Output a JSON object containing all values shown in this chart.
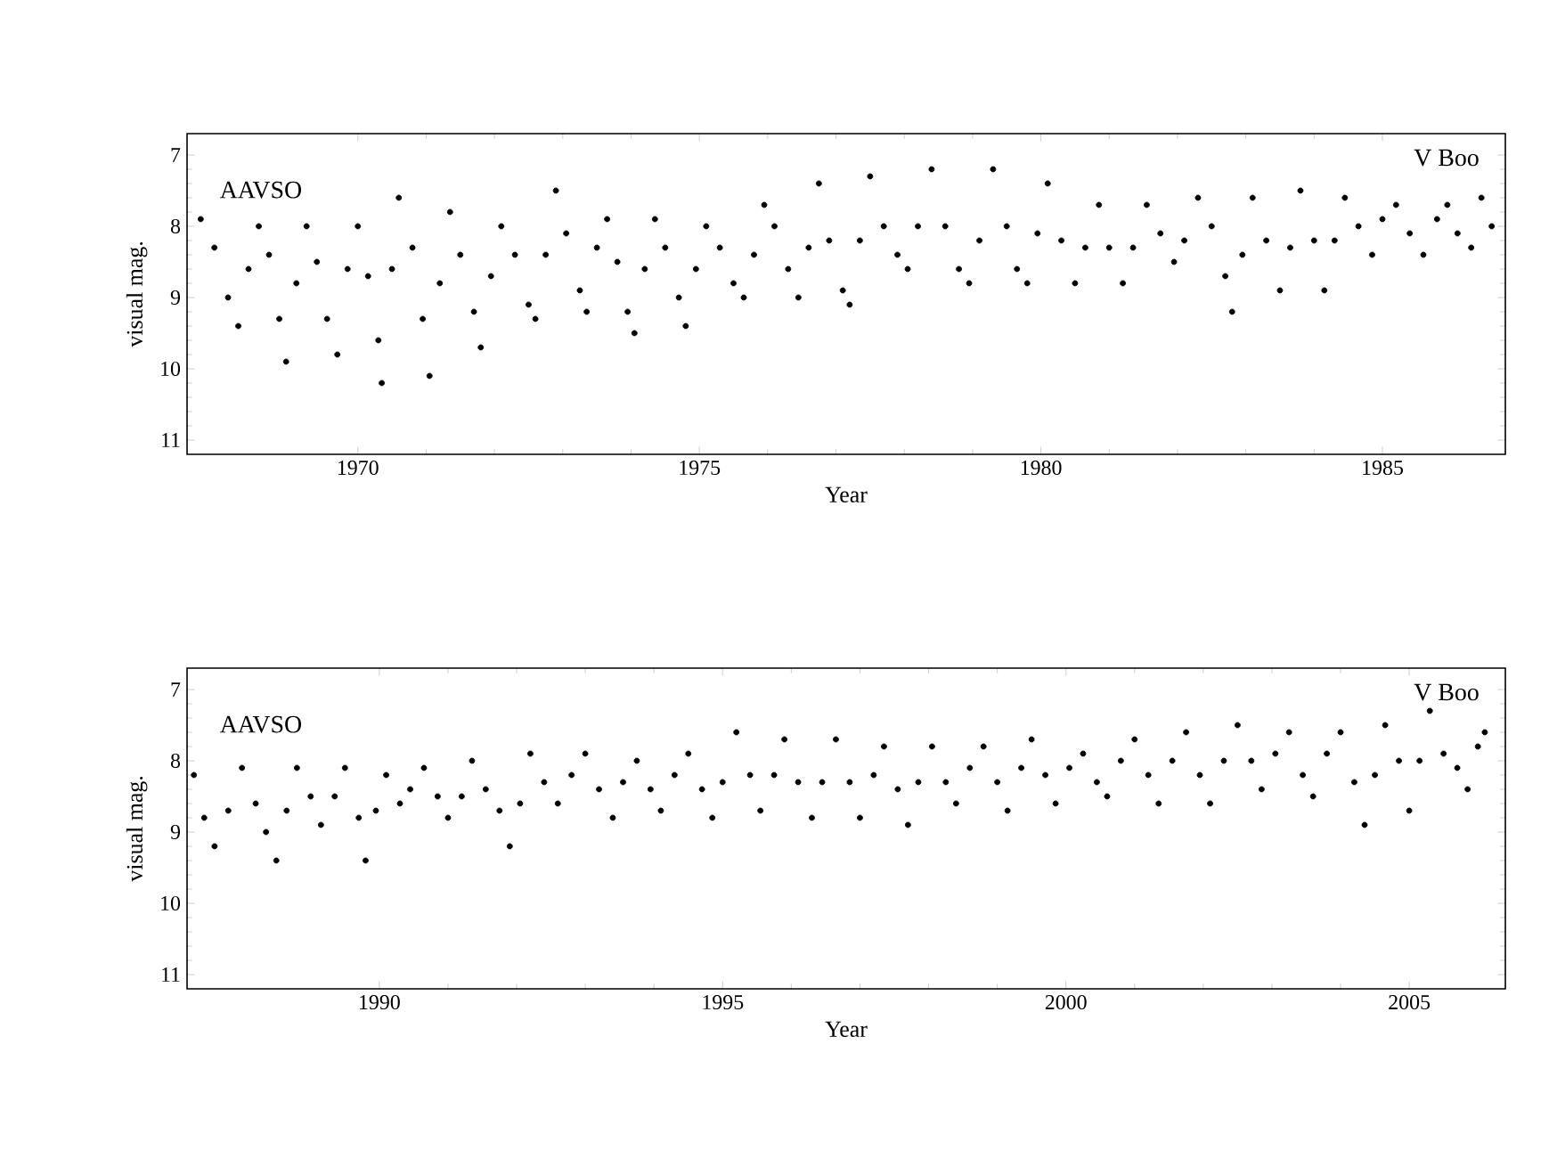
{
  "chart_data": [
    {
      "type": "scatter",
      "xlabel": "Year",
      "ylabel": "visual mag.",
      "annotations": [
        "AAVSO",
        "V Boo"
      ],
      "marker": "circle",
      "grid": false,
      "xlim": [
        1967.5,
        1986.8
      ],
      "ylim": [
        11.2,
        6.7
      ],
      "xticks": [
        1970,
        1975,
        1980,
        1985
      ],
      "yticks": [
        7,
        8,
        9,
        10,
        11
      ],
      "series": [
        {
          "color": "#000000",
          "x": [
            1967.7,
            1967.9,
            1968.1,
            1968.25,
            1968.4,
            1968.55,
            1968.7,
            1968.85,
            1968.95,
            1969.1,
            1969.25,
            1969.4,
            1969.55,
            1969.7,
            1969.85,
            1970.0,
            1970.15,
            1970.3,
            1970.35,
            1970.5,
            1970.6,
            1970.8,
            1970.95,
            1971.05,
            1971.2,
            1971.35,
            1971.5,
            1971.7,
            1971.8,
            1971.95,
            1972.1,
            1972.3,
            1972.5,
            1972.6,
            1972.75,
            1972.9,
            1973.05,
            1973.25,
            1973.35,
            1973.5,
            1973.65,
            1973.8,
            1973.95,
            1974.05,
            1974.2,
            1974.35,
            1974.5,
            1974.7,
            1974.8,
            1974.95,
            1975.1,
            1975.3,
            1975.5,
            1975.65,
            1975.8,
            1975.95,
            1976.1,
            1976.3,
            1976.45,
            1976.6,
            1976.75,
            1976.9,
            1977.1,
            1977.2,
            1977.35,
            1977.5,
            1977.7,
            1977.9,
            1978.05,
            1978.2,
            1978.4,
            1978.6,
            1978.8,
            1978.95,
            1979.1,
            1979.3,
            1979.5,
            1979.65,
            1979.8,
            1979.95,
            1980.1,
            1980.3,
            1980.5,
            1980.65,
            1980.85,
            1981.0,
            1981.2,
            1981.35,
            1981.55,
            1981.75,
            1981.95,
            1982.1,
            1982.3,
            1982.5,
            1982.7,
            1982.8,
            1982.95,
            1983.1,
            1983.3,
            1983.5,
            1983.65,
            1983.8,
            1984.0,
            1984.15,
            1984.3,
            1984.45,
            1984.65,
            1984.85,
            1985.0,
            1985.2,
            1985.4,
            1985.6,
            1985.8,
            1985.95,
            1986.1,
            1986.3,
            1986.45,
            1986.6
          ],
          "values": [
            7.9,
            8.3,
            9.0,
            9.4,
            8.6,
            8.0,
            8.4,
            9.3,
            9.9,
            8.8,
            8.0,
            8.5,
            9.3,
            9.8,
            8.6,
            8.0,
            8.7,
            9.6,
            10.2,
            8.6,
            7.6,
            8.3,
            9.3,
            10.1,
            8.8,
            7.8,
            8.4,
            9.2,
            9.7,
            8.7,
            8.0,
            8.4,
            9.1,
            9.3,
            8.4,
            7.5,
            8.1,
            8.9,
            9.2,
            8.3,
            7.9,
            8.5,
            9.2,
            9.5,
            8.6,
            7.9,
            8.3,
            9.0,
            9.4,
            8.6,
            8.0,
            8.3,
            8.8,
            9.0,
            8.4,
            7.7,
            8.0,
            8.6,
            9.0,
            8.3,
            7.4,
            8.2,
            8.9,
            9.1,
            8.2,
            7.3,
            8.0,
            8.4,
            8.6,
            8.0,
            7.2,
            8.0,
            8.6,
            8.8,
            8.2,
            7.2,
            8.0,
            8.6,
            8.8,
            8.1,
            7.4,
            8.2,
            8.8,
            8.3,
            7.7,
            8.3,
            8.8,
            8.3,
            7.7,
            8.1,
            8.5,
            8.2,
            7.6,
            8.0,
            8.7,
            9.2,
            8.4,
            7.6,
            8.2,
            8.9,
            8.3,
            7.5,
            8.2,
            8.9,
            8.2,
            7.6,
            8.0,
            8.4,
            7.9,
            7.7,
            8.1,
            8.4,
            7.9,
            7.7,
            8.1,
            8.3,
            7.6,
            8.0
          ]
        }
      ]
    },
    {
      "type": "scatter",
      "xlabel": "Year",
      "ylabel": "visual mag.",
      "annotations": [
        "AAVSO",
        "V Boo"
      ],
      "marker": "circle",
      "grid": false,
      "xlim": [
        1987.2,
        2006.4
      ],
      "ylim": [
        11.2,
        6.7
      ],
      "xticks": [
        1990,
        1995,
        2000,
        2005
      ],
      "yticks": [
        7,
        8,
        9,
        10,
        11
      ],
      "series": [
        {
          "color": "#000000",
          "x": [
            1987.3,
            1987.45,
            1987.6,
            1987.8,
            1988.0,
            1988.2,
            1988.35,
            1988.5,
            1988.65,
            1988.8,
            1989.0,
            1989.15,
            1989.35,
            1989.5,
            1989.7,
            1989.8,
            1989.95,
            1990.1,
            1990.3,
            1990.45,
            1990.65,
            1990.85,
            1991.0,
            1991.2,
            1991.35,
            1991.55,
            1991.75,
            1991.9,
            1992.05,
            1992.2,
            1992.4,
            1992.6,
            1992.8,
            1993.0,
            1993.2,
            1993.4,
            1993.55,
            1993.75,
            1993.95,
            1994.1,
            1994.3,
            1994.5,
            1994.7,
            1994.85,
            1995.0,
            1995.2,
            1995.4,
            1995.55,
            1995.75,
            1995.9,
            1996.1,
            1996.3,
            1996.45,
            1996.65,
            1996.85,
            1997.0,
            1997.2,
            1997.35,
            1997.55,
            1997.7,
            1997.85,
            1998.05,
            1998.25,
            1998.4,
            1998.6,
            1998.8,
            1999.0,
            1999.15,
            1999.35,
            1999.5,
            1999.7,
            1999.85,
            2000.05,
            2000.25,
            2000.45,
            2000.6,
            2000.8,
            2001.0,
            2001.2,
            2001.35,
            2001.55,
            2001.75,
            2001.95,
            2002.1,
            2002.3,
            2002.5,
            2002.7,
            2002.85,
            2003.05,
            2003.25,
            2003.45,
            2003.6,
            2003.8,
            2004.0,
            2004.2,
            2004.35,
            2004.5,
            2004.65,
            2004.85,
            2005.0,
            2005.15,
            2005.3,
            2005.5,
            2005.7,
            2005.85,
            2006.0,
            2006.1
          ],
          "values": [
            8.2,
            8.8,
            9.2,
            8.7,
            8.1,
            8.6,
            9.0,
            9.4,
            8.7,
            8.1,
            8.5,
            8.9,
            8.5,
            8.1,
            8.8,
            9.4,
            8.7,
            8.2,
            8.6,
            8.4,
            8.1,
            8.5,
            8.8,
            8.5,
            8.0,
            8.4,
            8.7,
            9.2,
            8.6,
            7.9,
            8.3,
            8.6,
            8.2,
            7.9,
            8.4,
            8.8,
            8.3,
            8.0,
            8.4,
            8.7,
            8.2,
            7.9,
            8.4,
            8.8,
            8.3,
            7.6,
            8.2,
            8.7,
            8.2,
            7.7,
            8.3,
            8.8,
            8.3,
            7.7,
            8.3,
            8.8,
            8.2,
            7.8,
            8.4,
            8.9,
            8.3,
            7.8,
            8.3,
            8.6,
            8.1,
            7.8,
            8.3,
            8.7,
            8.1,
            7.7,
            8.2,
            8.6,
            8.1,
            7.9,
            8.3,
            8.5,
            8.0,
            7.7,
            8.2,
            8.6,
            8.0,
            7.6,
            8.2,
            8.6,
            8.0,
            7.5,
            8.0,
            8.4,
            7.9,
            7.6,
            8.2,
            8.5,
            7.9,
            7.6,
            8.3,
            8.9,
            8.2,
            7.5,
            8.0,
            8.7,
            8.0,
            7.3,
            7.9,
            8.1,
            8.4,
            7.8,
            7.6
          ]
        }
      ]
    }
  ]
}
